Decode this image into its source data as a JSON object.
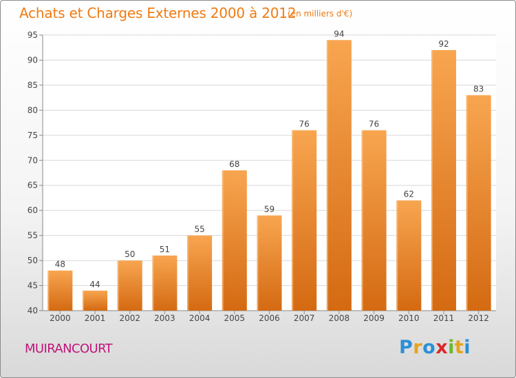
{
  "header": {
    "title": "Achats et Charges Externes 2000 à 2012",
    "subtitle": "(en milliers d'€)"
  },
  "footer": {
    "commune": "MUIRANCOURT",
    "logo_text": "Proxiti",
    "logo_letters": [
      {
        "ch": "P",
        "color": "#2a8fd6"
      },
      {
        "ch": "r",
        "color": "#e8a21c"
      },
      {
        "ch": "o",
        "color": "#2a8fd6"
      },
      {
        "ch": "x",
        "color": "#d92929"
      },
      {
        "ch": "i",
        "color": "#6ab82c"
      },
      {
        "ch": "t",
        "color": "#e8a21c"
      },
      {
        "ch": "i",
        "color": "#2a8fd6"
      }
    ]
  },
  "chart_data": {
    "type": "bar",
    "title": "Achats et Charges Externes 2000 à 2012",
    "subtitle": "(en milliers d'€)",
    "categories": [
      "2000",
      "2001",
      "2002",
      "2003",
      "2004",
      "2005",
      "2006",
      "2007",
      "2008",
      "2009",
      "2010",
      "2011",
      "2012"
    ],
    "values": [
      48,
      44,
      50,
      51,
      55,
      68,
      59,
      76,
      94,
      76,
      62,
      92,
      83
    ],
    "ylim": [
      40,
      95
    ],
    "yticks": [
      40,
      45,
      50,
      55,
      60,
      65,
      70,
      75,
      80,
      85,
      90,
      95
    ],
    "grid": true,
    "bar_color_top": "#f8a550",
    "bar_color_bottom": "#d46a12",
    "xlabel": "",
    "ylabel": ""
  }
}
